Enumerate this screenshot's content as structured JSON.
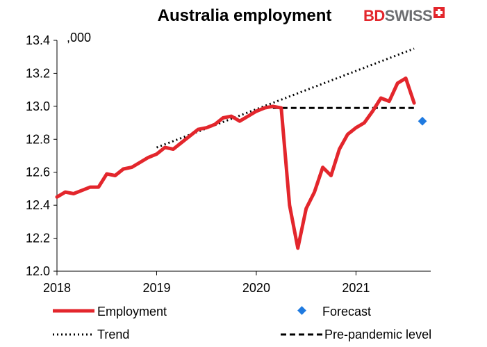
{
  "logo": {
    "part1": "BD",
    "part2": "SWISS",
    "icon": "swiss-cross-icon"
  },
  "colors": {
    "employment": "#e3262c",
    "forecast": "#1f7ae0",
    "trend": "#000000",
    "prepandemic": "#000000"
  },
  "chart_data": {
    "type": "line",
    "title": "Australia employment",
    "unit_label": ",000",
    "xlim": [
      "2018-01",
      "2021-10"
    ],
    "ylim": [
      12.0,
      13.4
    ],
    "yticks": [
      12.0,
      12.2,
      12.4,
      12.6,
      12.8,
      13.0,
      13.2,
      13.4
    ],
    "ytick_labels": [
      "12.0",
      "12.2",
      "12.4",
      "12.6",
      "12.8",
      "13.0",
      "13.2",
      "13.4"
    ],
    "xticks": [
      "2018-01",
      "2019-01",
      "2020-01",
      "2021-01"
    ],
    "xtick_labels": [
      "2018",
      "2019",
      "2020",
      "2021"
    ],
    "grid": false,
    "legend_position": "bottom",
    "series": [
      {
        "name": "Employment",
        "style": "solid",
        "x": [
          "2018-01",
          "2018-02",
          "2018-03",
          "2018-04",
          "2018-05",
          "2018-06",
          "2018-07",
          "2018-08",
          "2018-09",
          "2018-10",
          "2018-11",
          "2018-12",
          "2019-01",
          "2019-02",
          "2019-03",
          "2019-04",
          "2019-05",
          "2019-06",
          "2019-07",
          "2019-08",
          "2019-09",
          "2019-10",
          "2019-11",
          "2019-12",
          "2020-01",
          "2020-02",
          "2020-03",
          "2020-04",
          "2020-05",
          "2020-06",
          "2020-07",
          "2020-08",
          "2020-09",
          "2020-10",
          "2020-11",
          "2020-12",
          "2021-01",
          "2021-02",
          "2021-03",
          "2021-04",
          "2021-05",
          "2021-06",
          "2021-07",
          "2021-08"
        ],
        "values": [
          12.45,
          12.48,
          12.47,
          12.49,
          12.51,
          12.51,
          12.59,
          12.58,
          12.62,
          12.63,
          12.66,
          12.69,
          12.71,
          12.75,
          12.74,
          12.78,
          12.82,
          12.86,
          12.87,
          12.89,
          12.93,
          12.94,
          12.91,
          12.94,
          12.97,
          12.99,
          13.0,
          12.99,
          12.4,
          12.14,
          12.38,
          12.48,
          12.63,
          12.58,
          12.74,
          12.83,
          12.87,
          12.9,
          12.97,
          13.05,
          13.03,
          13.14,
          13.17,
          13.02
        ]
      },
      {
        "name": "Trend",
        "style": "dotted",
        "x": [
          "2019-01",
          "2021-08"
        ],
        "values": [
          12.75,
          13.35
        ]
      },
      {
        "name": "Pre-pandemic level",
        "style": "dashed",
        "x": [
          "2020-03",
          "2021-08"
        ],
        "values": [
          12.99,
          12.99
        ]
      },
      {
        "name": "Forecast",
        "style": "marker",
        "x": [
          "2021-09"
        ],
        "values": [
          12.91
        ]
      }
    ]
  }
}
